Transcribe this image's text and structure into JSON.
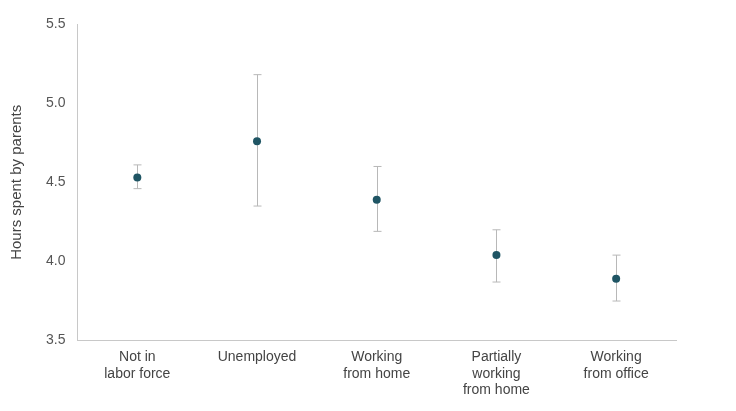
{
  "chart_data": {
    "type": "scatter",
    "y_label": "Hours spent by parents",
    "categories": [
      [
        "Not in",
        "labor force"
      ],
      [
        "Unemployed"
      ],
      [
        "Working",
        "from home"
      ],
      [
        "Partially",
        "working",
        "from home"
      ],
      [
        "Working",
        "from office"
      ]
    ],
    "values": [
      4.53,
      4.76,
      4.39,
      4.04,
      3.89
    ],
    "ci_low": [
      4.46,
      4.35,
      4.19,
      3.87,
      3.75
    ],
    "ci_high": [
      4.61,
      5.18,
      4.6,
      4.2,
      4.04
    ],
    "color": "#1f5564",
    "marker": "circle",
    "ylim": [
      3.5,
      5.5
    ],
    "yticks": [
      3.5,
      {
        "value": 4,
        "label": "4.0"
      },
      4.5,
      {
        "value": 5,
        "label": "5.0"
      },
      5.5
    ],
    "grid": false
  }
}
